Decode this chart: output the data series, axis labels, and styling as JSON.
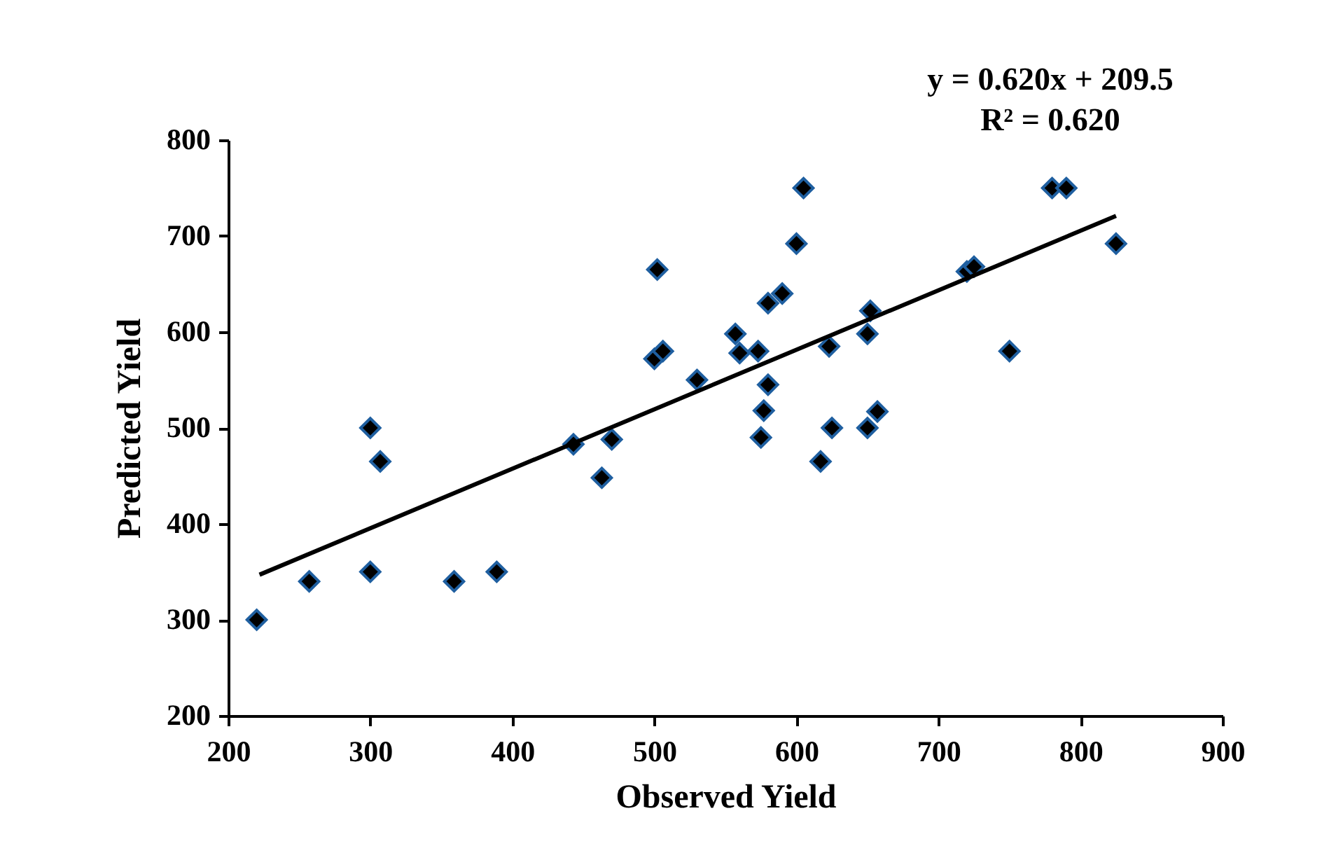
{
  "chart_data": {
    "type": "scatter",
    "xlabel": "Observed Yield",
    "ylabel": "Predicted Yield",
    "annotations": [
      "y = 0.620x + 209.5",
      "R² = 0.620"
    ],
    "xlim": [
      200,
      900
    ],
    "ylim": [
      200,
      800
    ],
    "xticks": [
      200,
      300,
      400,
      500,
      600,
      700,
      800,
      900
    ],
    "yticks": [
      200,
      300,
      400,
      500,
      600,
      700,
      800
    ],
    "grid": false,
    "marker": "diamond",
    "series": [
      {
        "color": "#000000",
        "x": [
          220,
          257,
          300,
          307,
          300,
          359,
          389,
          443,
          463,
          470,
          500,
          502,
          506,
          530,
          557,
          560,
          573,
          575,
          577,
          580,
          580,
          590,
          600,
          605,
          617,
          623,
          625,
          650,
          650,
          652,
          657,
          720,
          725,
          750,
          780,
          790,
          825
        ],
        "values": [
          300,
          340,
          500,
          465,
          350,
          340,
          350,
          483,
          448,
          488,
          572,
          665,
          580,
          550,
          598,
          578,
          580,
          490,
          518,
          545,
          630,
          640,
          692,
          750,
          465,
          585,
          500,
          500,
          598,
          622,
          517,
          663,
          668,
          580,
          750,
          750,
          692
        ]
      },
      {
        "type": "line",
        "color": "#000000",
        "line_style": "solid",
        "marker": "none",
        "x": [
          222,
          825
        ],
        "values": [
          347,
          721
        ]
      }
    ]
  }
}
